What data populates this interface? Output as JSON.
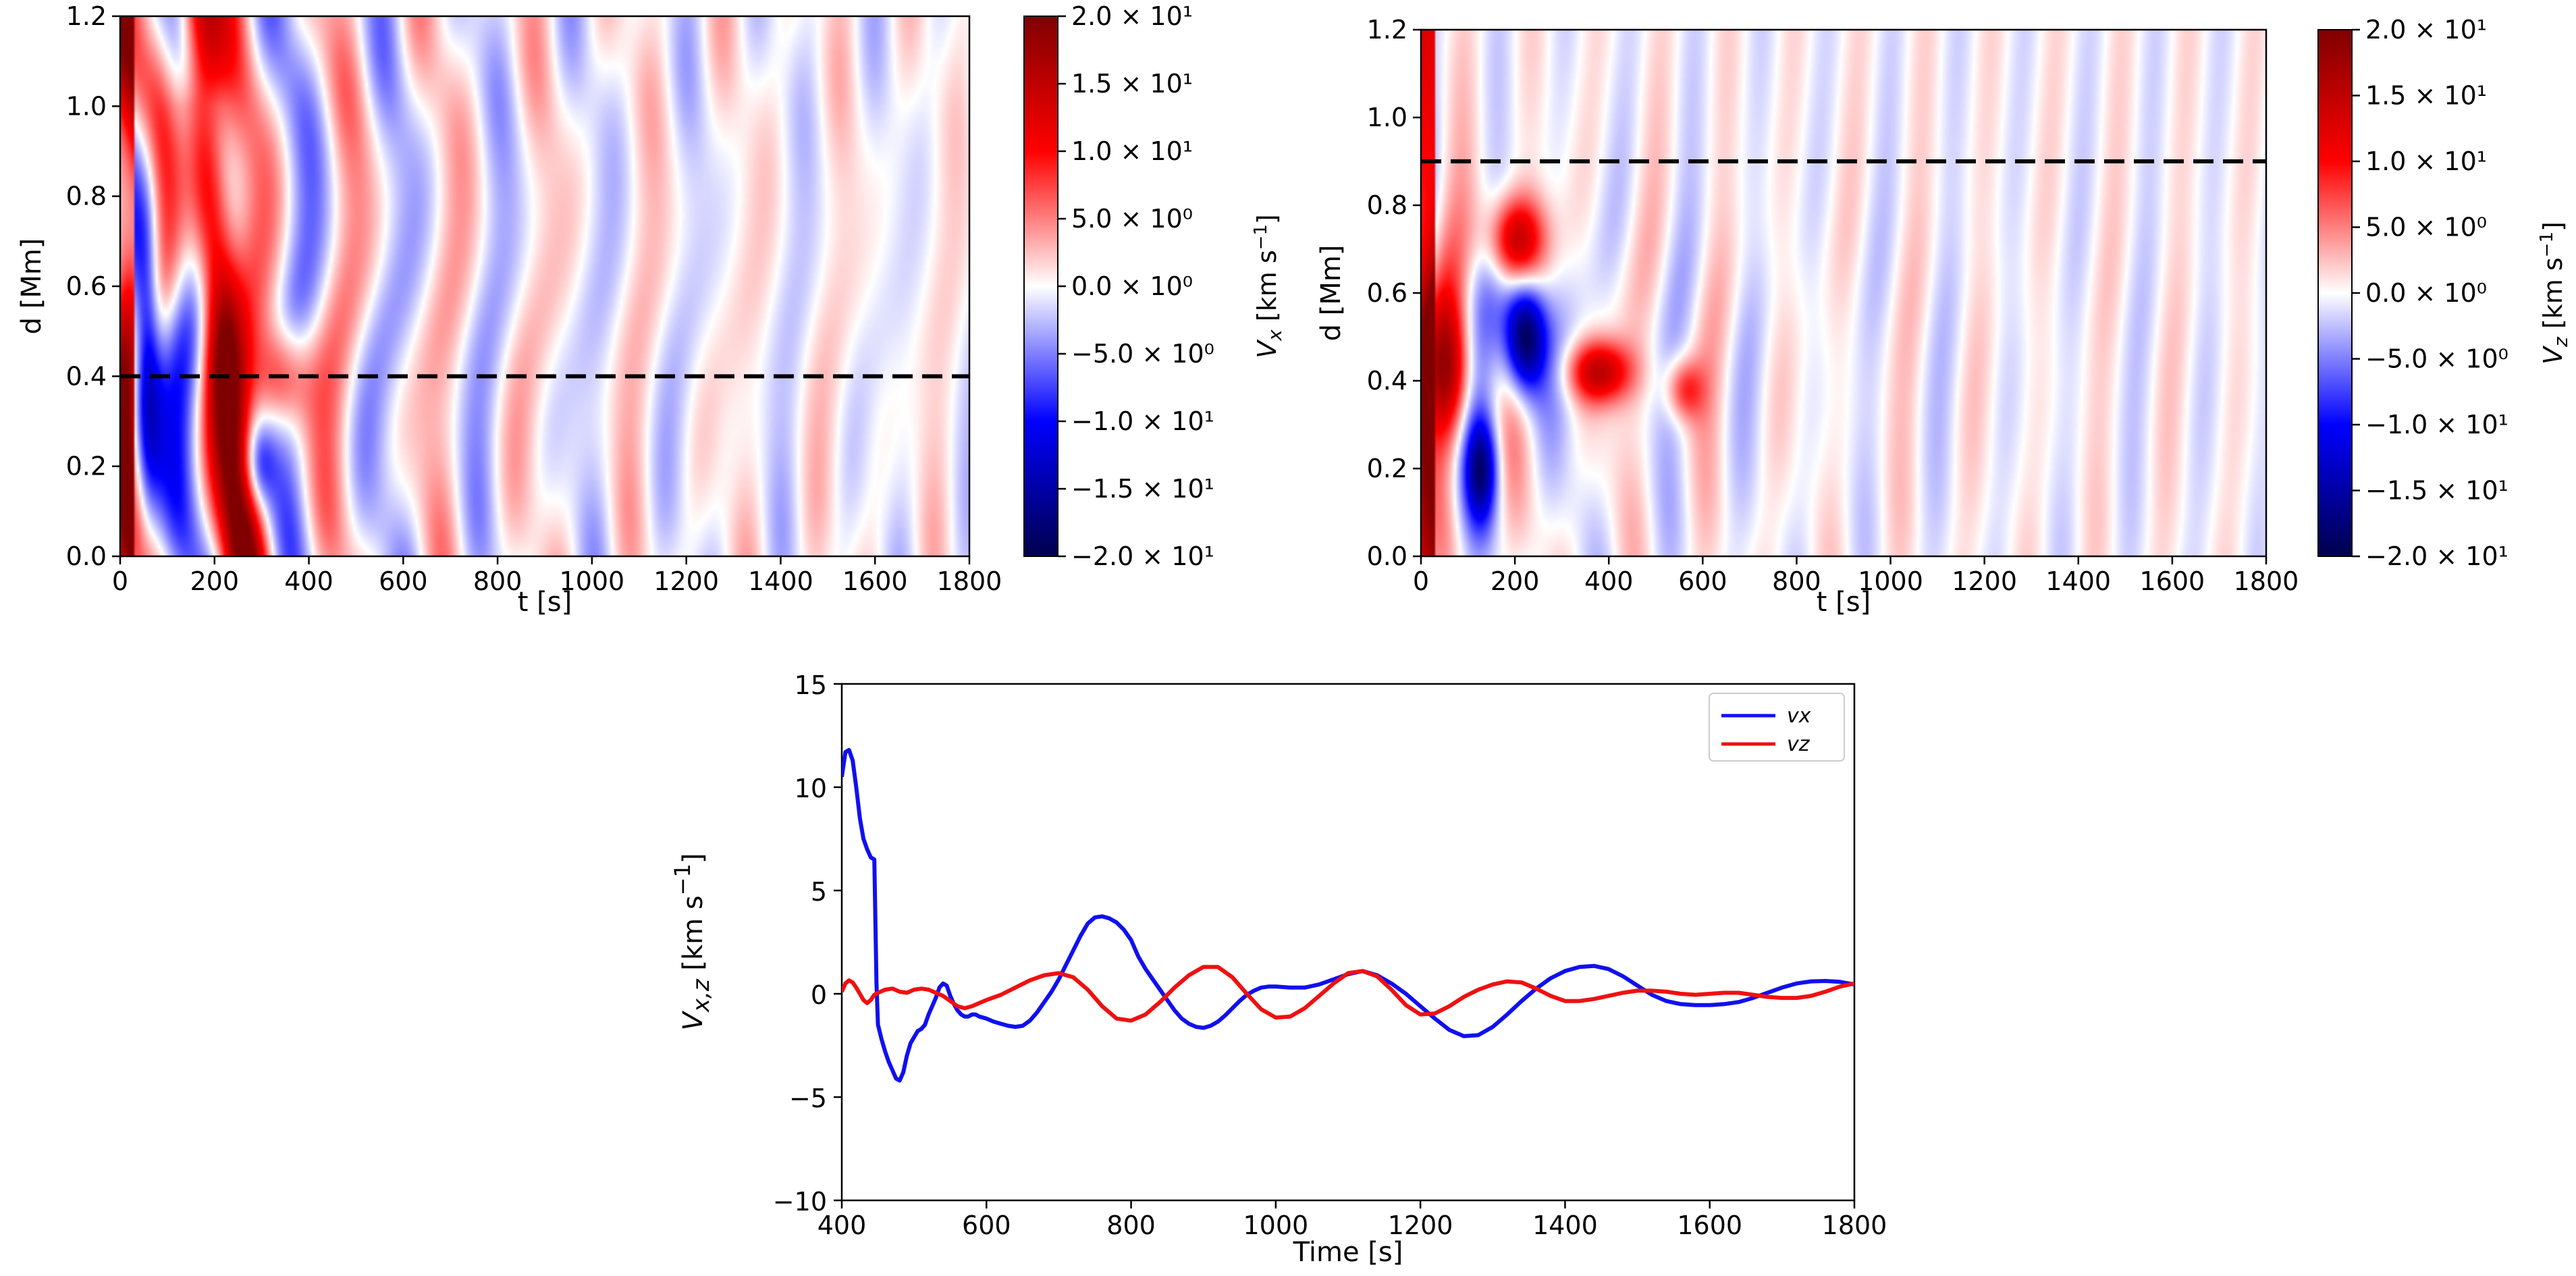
{
  "chart_data": [
    {
      "type": "heatmap",
      "id": "vx_map",
      "xlabel": "t [s]",
      "ylabel": "d [Mm]",
      "xlim": [
        0,
        1800
      ],
      "ylim": [
        0,
        1.2
      ],
      "xticks": [
        0,
        200,
        400,
        600,
        800,
        1000,
        1200,
        1400,
        1600,
        1800
      ],
      "xtick_labels": [
        "0",
        "200",
        "400",
        "600",
        "800",
        "1000",
        "1200",
        "1400",
        "1600",
        "1800"
      ],
      "yticks": [
        0,
        0.2,
        0.4,
        0.6,
        0.8,
        1.0,
        1.2
      ],
      "ytick_labels": [
        "0.0",
        "0.2",
        "0.4",
        "0.6",
        "0.8",
        "1.0",
        "1.2"
      ],
      "colorbar": {
        "label": "Vx [km s-1]",
        "label_main": "V",
        "label_sub": "x",
        "label_unit": " [km s",
        "label_sup": "−1",
        "label_close": "]",
        "range": [
          -20,
          20
        ],
        "ticks": [
          20,
          15,
          10,
          5,
          0,
          -5,
          -10,
          -15,
          -20
        ],
        "tick_labels": [
          "2.0 × 10¹",
          "1.5 × 10¹",
          "1.0 × 10¹",
          "5.0 × 10⁰",
          "0.0 × 10⁰",
          "−5.0 × 10⁰",
          "−1.0 × 10¹",
          "−1.5 × 10¹",
          "−2.0 × 10¹"
        ],
        "colormap": "seismic"
      },
      "reference_line": {
        "d": 0.4,
        "style": "dashed",
        "color": "#000000"
      }
    },
    {
      "type": "heatmap",
      "id": "vz_map",
      "xlabel": "t [s]",
      "ylabel": "d [Mm]",
      "xlim": [
        0,
        1800
      ],
      "ylim": [
        0,
        1.2
      ],
      "xticks": [
        0,
        200,
        400,
        600,
        800,
        1000,
        1200,
        1400,
        1600,
        1800
      ],
      "xtick_labels": [
        "0",
        "200",
        "400",
        "600",
        "800",
        "1000",
        "1200",
        "1400",
        "1600",
        "1800"
      ],
      "yticks": [
        0,
        0.2,
        0.4,
        0.6,
        0.8,
        1.0,
        1.2
      ],
      "ytick_labels": [
        "0.0",
        "0.2",
        "0.4",
        "0.6",
        "0.8",
        "1.0",
        "1.2"
      ],
      "colorbar": {
        "label": "Vz [km s-1]",
        "label_main": "V",
        "label_sub": "z",
        "label_unit": " [km s",
        "label_sup": "−1",
        "label_close": "]",
        "range": [
          -20,
          20
        ],
        "ticks": [
          20,
          15,
          10,
          5,
          0,
          -5,
          -10,
          -15,
          -20
        ],
        "tick_labels": [
          "2.0 × 10¹",
          "1.5 × 10¹",
          "1.0 × 10¹",
          "5.0 × 10⁰",
          "0.0 × 10⁰",
          "−5.0 × 10⁰",
          "−1.0 × 10¹",
          "−1.5 × 10¹",
          "−2.0 × 10¹"
        ],
        "colormap": "seismic"
      },
      "reference_line": {
        "d": 0.9,
        "style": "dashed",
        "color": "#000000"
      }
    },
    {
      "type": "line",
      "id": "velocity_timeseries",
      "xlabel": "Time [s]",
      "ylabel": "Vx,z [km s-1]",
      "ylabel_main": "V",
      "ylabel_sub": "x,z",
      "ylabel_unit": " [km s",
      "ylabel_sup": "−1",
      "ylabel_close": "]",
      "xlim": [
        400,
        1800
      ],
      "ylim": [
        -10,
        15
      ],
      "xticks": [
        400,
        600,
        800,
        1000,
        1200,
        1400,
        1600,
        1800
      ],
      "xtick_labels": [
        "400",
        "600",
        "800",
        "1000",
        "1200",
        "1400",
        "1600",
        "1800"
      ],
      "yticks": [
        -10,
        -5,
        0,
        5,
        10,
        15
      ],
      "ytick_labels": [
        "−10",
        "−5",
        "0",
        "5",
        "10",
        "15"
      ],
      "legend": {
        "position": "top-right",
        "entries": [
          "vx",
          "vz"
        ]
      },
      "series": [
        {
          "name": "vx",
          "color": "#1010f0",
          "x": [
            400,
            405,
            410,
            415,
            420,
            425,
            430,
            435,
            440,
            445,
            448,
            450,
            455,
            460,
            465,
            470,
            475,
            480,
            485,
            490,
            495,
            500,
            505,
            510,
            515,
            520,
            525,
            530,
            535,
            540,
            545,
            550,
            555,
            560,
            565,
            570,
            575,
            580,
            585,
            590,
            600,
            610,
            620,
            630,
            640,
            650,
            660,
            670,
            680,
            690,
            700,
            710,
            720,
            730,
            740,
            750,
            760,
            770,
            780,
            790,
            800,
            810,
            820,
            830,
            840,
            850,
            860,
            870,
            880,
            890,
            900,
            910,
            920,
            930,
            940,
            950,
            960,
            970,
            980,
            990,
            1000,
            1020,
            1040,
            1060,
            1080,
            1100,
            1120,
            1140,
            1160,
            1180,
            1200,
            1220,
            1240,
            1260,
            1280,
            1300,
            1320,
            1340,
            1360,
            1380,
            1400,
            1420,
            1440,
            1460,
            1480,
            1500,
            1520,
            1540,
            1560,
            1580,
            1600,
            1620,
            1640,
            1660,
            1680,
            1700,
            1720,
            1740,
            1760,
            1780,
            1800
          ],
          "y": [
            10.5,
            11.7,
            11.8,
            11.3,
            10.0,
            8.5,
            7.5,
            7.0,
            6.6,
            6.5,
            0.5,
            -1.5,
            -2.2,
            -2.8,
            -3.3,
            -3.7,
            -4.1,
            -4.2,
            -3.8,
            -3.0,
            -2.4,
            -2.1,
            -1.8,
            -1.7,
            -1.5,
            -1.0,
            -0.6,
            -0.2,
            0.3,
            0.5,
            0.4,
            -0.1,
            -0.5,
            -0.8,
            -1.0,
            -1.1,
            -1.1,
            -1.0,
            -1.0,
            -1.1,
            -1.2,
            -1.35,
            -1.45,
            -1.55,
            -1.6,
            -1.55,
            -1.3,
            -0.9,
            -0.4,
            0.1,
            0.7,
            1.4,
            2.1,
            2.8,
            3.4,
            3.7,
            3.75,
            3.65,
            3.45,
            3.1,
            2.6,
            1.8,
            1.2,
            0.7,
            0.2,
            -0.3,
            -0.8,
            -1.2,
            -1.45,
            -1.6,
            -1.65,
            -1.55,
            -1.35,
            -1.05,
            -0.7,
            -0.35,
            -0.05,
            0.15,
            0.3,
            0.35,
            0.35,
            0.3,
            0.3,
            0.45,
            0.7,
            0.95,
            1.1,
            0.9,
            0.5,
            0.0,
            -0.6,
            -1.2,
            -1.75,
            -2.05,
            -2.0,
            -1.6,
            -1.0,
            -0.35,
            0.25,
            0.75,
            1.1,
            1.3,
            1.35,
            1.2,
            0.85,
            0.4,
            -0.05,
            -0.35,
            -0.5,
            -0.55,
            -0.55,
            -0.5,
            -0.4,
            -0.2,
            0.05,
            0.3,
            0.5,
            0.6,
            0.62,
            0.58,
            0.45
          ]
        },
        {
          "name": "vz",
          "color": "#f01010",
          "x": [
            400,
            405,
            410,
            415,
            420,
            425,
            430,
            435,
            440,
            445,
            450,
            460,
            470,
            480,
            490,
            500,
            510,
            520,
            530,
            540,
            550,
            560,
            570,
            580,
            590,
            600,
            620,
            640,
            660,
            680,
            700,
            720,
            740,
            760,
            780,
            800,
            820,
            840,
            860,
            880,
            900,
            920,
            940,
            960,
            980,
            1000,
            1020,
            1040,
            1060,
            1080,
            1100,
            1120,
            1140,
            1160,
            1180,
            1200,
            1220,
            1240,
            1260,
            1280,
            1300,
            1320,
            1340,
            1360,
            1380,
            1400,
            1420,
            1440,
            1460,
            1480,
            1500,
            1520,
            1540,
            1560,
            1580,
            1600,
            1620,
            1640,
            1660,
            1680,
            1700,
            1720,
            1740,
            1760,
            1780,
            1800
          ],
          "y": [
            0.1,
            0.5,
            0.65,
            0.55,
            0.3,
            0.0,
            -0.3,
            -0.45,
            -0.3,
            -0.05,
            0.05,
            0.2,
            0.25,
            0.1,
            0.05,
            0.2,
            0.25,
            0.2,
            0.05,
            -0.1,
            -0.35,
            -0.6,
            -0.7,
            -0.6,
            -0.45,
            -0.3,
            -0.05,
            0.3,
            0.65,
            0.9,
            1.0,
            0.8,
            0.2,
            -0.6,
            -1.2,
            -1.3,
            -1.0,
            -0.4,
            0.3,
            0.9,
            1.3,
            1.3,
            0.8,
            0.0,
            -0.75,
            -1.15,
            -1.1,
            -0.7,
            -0.1,
            0.5,
            1.0,
            1.1,
            0.85,
            0.2,
            -0.55,
            -1.0,
            -0.95,
            -0.6,
            -0.15,
            0.2,
            0.45,
            0.6,
            0.55,
            0.25,
            -0.1,
            -0.35,
            -0.35,
            -0.25,
            -0.1,
            0.05,
            0.15,
            0.15,
            0.1,
            0.0,
            -0.05,
            0.0,
            0.05,
            0.05,
            -0.05,
            -0.15,
            -0.2,
            -0.2,
            -0.1,
            0.1,
            0.35,
            0.5
          ]
        }
      ]
    }
  ]
}
